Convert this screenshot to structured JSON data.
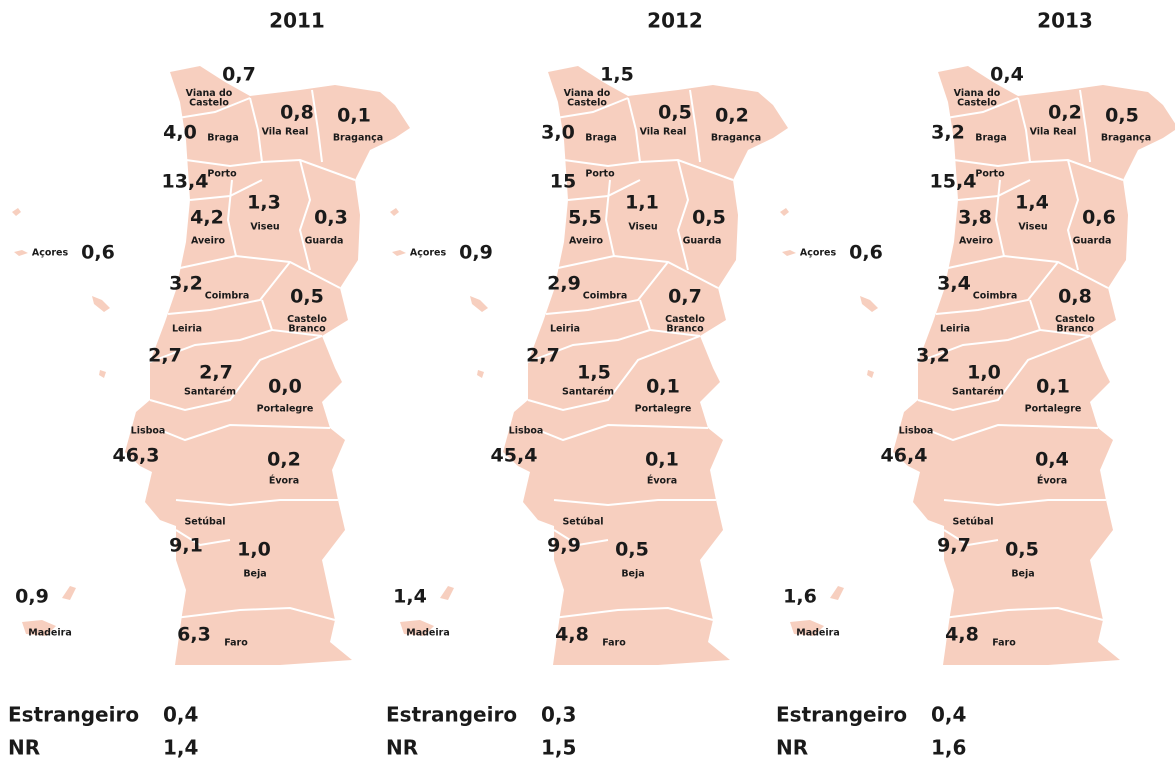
{
  "panels": [
    {
      "year": "2011",
      "regions": [
        {
          "name": [
            "Viana do",
            "Castelo"
          ],
          "value": "0,7"
        },
        {
          "name": "Braga",
          "value": "4,0"
        },
        {
          "name": "Vila Real",
          "value": "0,8"
        },
        {
          "name": "Bragança",
          "value": "0,1"
        },
        {
          "name": "Porto",
          "value": "13,4"
        },
        {
          "name": "Aveiro",
          "value": "4,2"
        },
        {
          "name": "Viseu",
          "value": "1,3"
        },
        {
          "name": "Guarda",
          "value": "0,3"
        },
        {
          "name": "Coimbra",
          "value": "3,2"
        },
        {
          "name": [
            "Castelo",
            "Branco"
          ],
          "value": "0,5"
        },
        {
          "name": "Leiria",
          "value": "2,7"
        },
        {
          "name": "Santarém",
          "value": "2,7"
        },
        {
          "name": "Portalegre",
          "value": "0,0"
        },
        {
          "name": "Lisboa",
          "value": "46,3"
        },
        {
          "name": "Évora",
          "value": "0,2"
        },
        {
          "name": "Setúbal",
          "value": "9,1"
        },
        {
          "name": "Beja",
          "value": "1,0"
        },
        {
          "name": "Faro",
          "value": "6,3"
        },
        {
          "name": "Açores",
          "value": "0,6"
        },
        {
          "name": "Madeira",
          "value": "0,9"
        }
      ],
      "foreign": {
        "label": "Estrangeiro",
        "value": "0,4"
      },
      "nr": {
        "label": "NR",
        "value": "1,4"
      }
    },
    {
      "year": "2012",
      "regions": [
        {
          "name": [
            "Viana do",
            "Castelo"
          ],
          "value": "1,5"
        },
        {
          "name": "Braga",
          "value": "3,0"
        },
        {
          "name": "Vila Real",
          "value": "0,5"
        },
        {
          "name": "Bragança",
          "value": "0,2"
        },
        {
          "name": "Porto",
          "value": "15"
        },
        {
          "name": "Aveiro",
          "value": "5,5"
        },
        {
          "name": "Viseu",
          "value": "1,1"
        },
        {
          "name": "Guarda",
          "value": "0,5"
        },
        {
          "name": "Coimbra",
          "value": "2,9"
        },
        {
          "name": [
            "Castelo",
            "Branco"
          ],
          "value": "0,7"
        },
        {
          "name": "Leiria",
          "value": "2,7"
        },
        {
          "name": "Santarém",
          "value": "1,5"
        },
        {
          "name": "Portalegre",
          "value": "0,1"
        },
        {
          "name": "Lisboa",
          "value": "45,4"
        },
        {
          "name": "Évora",
          "value": "0,1"
        },
        {
          "name": "Setúbal",
          "value": "9,9"
        },
        {
          "name": "Beja",
          "value": "0,5"
        },
        {
          "name": "Faro",
          "value": "4,8"
        },
        {
          "name": "Açores",
          "value": "0,9"
        },
        {
          "name": "Madeira",
          "value": "1,4"
        }
      ],
      "foreign": {
        "label": "Estrangeiro",
        "value": "0,3"
      },
      "nr": {
        "label": "NR",
        "value": "1,5"
      }
    },
    {
      "year": "2013",
      "regions": [
        {
          "name": [
            "Viana do",
            "Castelo"
          ],
          "value": "0,4"
        },
        {
          "name": "Braga",
          "value": "3,2"
        },
        {
          "name": "Vila Real",
          "value": "0,2"
        },
        {
          "name": "Bragança",
          "value": "0,5"
        },
        {
          "name": "Porto",
          "value": "15,4"
        },
        {
          "name": "Aveiro",
          "value": "3,8"
        },
        {
          "name": "Viseu",
          "value": "1,4"
        },
        {
          "name": "Guarda",
          "value": "0,6"
        },
        {
          "name": "Coimbra",
          "value": "3,4"
        },
        {
          "name": [
            "Castelo",
            "Branco"
          ],
          "value": "0,8"
        },
        {
          "name": "Leiria",
          "value": "3,2"
        },
        {
          "name": "Santarém",
          "value": "1,0"
        },
        {
          "name": "Portalegre",
          "value": "0,1"
        },
        {
          "name": "Lisboa",
          "value": "46,4"
        },
        {
          "name": "Évora",
          "value": "0,4"
        },
        {
          "name": "Setúbal",
          "value": "9,7"
        },
        {
          "name": "Beja",
          "value": "0,5"
        },
        {
          "name": "Faro",
          "value": "4,8"
        },
        {
          "name": "Açores",
          "value": "0,6"
        },
        {
          "name": "Madeira",
          "value": "1,6"
        }
      ],
      "foreign": {
        "label": "Estrangeiro",
        "value": "0,4"
      },
      "nr": {
        "label": "NR",
        "value": "1,6"
      }
    }
  ]
}
